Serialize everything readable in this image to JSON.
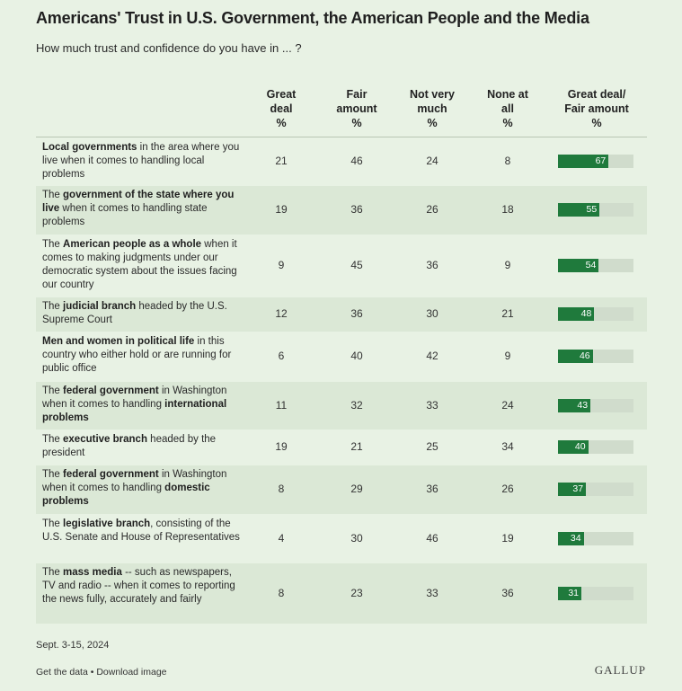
{
  "title": "Americans' Trust in U.S. Government, the American People and the Media",
  "subtitle": "How much trust and confidence do you have in ... ?",
  "columns": [
    [
      "Great",
      "deal",
      "%"
    ],
    [
      "Fair",
      "amount",
      "%"
    ],
    [
      "Not very",
      "much",
      "%"
    ],
    [
      "None at",
      "all",
      "%"
    ],
    [
      "Great deal/",
      "Fair amount",
      "%"
    ]
  ],
  "chart_data": {
    "type": "table",
    "rows": [
      {
        "label_parts": [
          [
            "Local governments",
            true
          ],
          [
            " in the area where you live when it comes to handling local problems",
            false
          ]
        ],
        "values": [
          21,
          46,
          24,
          8
        ],
        "combined": 67
      },
      {
        "label_parts": [
          [
            "The ",
            false
          ],
          [
            "government of the state where you live",
            true
          ],
          [
            " when it comes to handling state problems",
            false
          ]
        ],
        "values": [
          19,
          36,
          26,
          18
        ],
        "combined": 55
      },
      {
        "label_parts": [
          [
            "The ",
            false
          ],
          [
            "American people as a whole",
            true
          ],
          [
            " when it comes to making judgments under our democratic system about the issues facing our country",
            false
          ]
        ],
        "values": [
          9,
          45,
          36,
          9
        ],
        "combined": 54
      },
      {
        "label_parts": [
          [
            "The ",
            false
          ],
          [
            "judicial branch",
            true
          ],
          [
            " headed by the U.S. Supreme Court",
            false
          ]
        ],
        "values": [
          12,
          36,
          30,
          21
        ],
        "combined": 48
      },
      {
        "label_parts": [
          [
            "Men and women in political life",
            true
          ],
          [
            " in this country who either hold or are running for public office",
            false
          ]
        ],
        "values": [
          6,
          40,
          42,
          9
        ],
        "combined": 46
      },
      {
        "label_parts": [
          [
            "The ",
            false
          ],
          [
            "federal government",
            true
          ],
          [
            " in Washington when it comes to handling ",
            false
          ],
          [
            "international problems",
            true
          ]
        ],
        "values": [
          11,
          32,
          33,
          24
        ],
        "combined": 43
      },
      {
        "label_parts": [
          [
            "The ",
            false
          ],
          [
            "executive branch",
            true
          ],
          [
            " headed by the president",
            false
          ]
        ],
        "values": [
          19,
          21,
          25,
          34
        ],
        "combined": 40
      },
      {
        "label_parts": [
          [
            "The ",
            false
          ],
          [
            "federal government",
            true
          ],
          [
            " in Washington when it comes to handling ",
            false
          ],
          [
            "domestic problems",
            true
          ]
        ],
        "values": [
          8,
          29,
          36,
          26
        ],
        "combined": 37
      },
      {
        "label_parts": [
          [
            "The ",
            false
          ],
          [
            "legislative branch",
            true
          ],
          [
            ", consisting of the U.S. Senate and House of Representatives",
            false
          ]
        ],
        "values": [
          4,
          30,
          46,
          19
        ],
        "combined": 34
      },
      {
        "label_parts": [
          [
            "The ",
            false
          ],
          [
            "mass media",
            true
          ],
          [
            " -- such as newspapers, TV and radio -- when it comes to reporting the news fully, accurately and fairly",
            false
          ]
        ],
        "values": [
          8,
          23,
          33,
          36
        ],
        "combined": 31
      }
    ],
    "bar_max": 100
  },
  "colors": {
    "bar": "#1f7a3c",
    "track": "#d0dccc",
    "background": "#e8f2e4",
    "shade": "#dbe8d6"
  },
  "footnote": "Sept. 3-15, 2024",
  "links": {
    "get_data": "Get the data",
    "separator": " • ",
    "download": "Download image"
  },
  "logo": "GALLUP"
}
